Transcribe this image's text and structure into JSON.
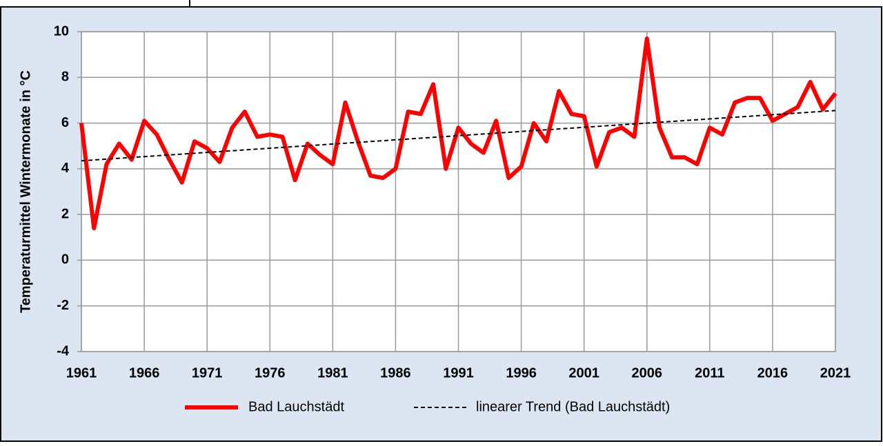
{
  "chart_data": {
    "type": "line",
    "y_label": "Temperaturmittel Wintermonate in °C",
    "x": [
      1961,
      1962,
      1963,
      1964,
      1965,
      1966,
      1967,
      1968,
      1969,
      1970,
      1971,
      1972,
      1973,
      1974,
      1975,
      1976,
      1977,
      1978,
      1979,
      1980,
      1981,
      1982,
      1983,
      1984,
      1985,
      1986,
      1987,
      1988,
      1989,
      1990,
      1991,
      1992,
      1993,
      1994,
      1995,
      1996,
      1997,
      1998,
      1999,
      2000,
      2001,
      2002,
      2003,
      2004,
      2005,
      2006,
      2007,
      2008,
      2009,
      2010,
      2011,
      2012,
      2013,
      2014,
      2015,
      2016,
      2017,
      2018,
      2019,
      2020,
      2021
    ],
    "series": [
      {
        "name": "Bad Lauchstädt",
        "color": "#ff0000",
        "values": [
          6.0,
          1.4,
          4.2,
          5.1,
          4.4,
          6.1,
          5.5,
          4.4,
          3.4,
          5.2,
          4.9,
          4.3,
          5.8,
          6.5,
          5.4,
          5.5,
          5.4,
          3.5,
          5.1,
          4.6,
          4.2,
          6.9,
          5.2,
          3.7,
          3.6,
          4.0,
          6.5,
          6.4,
          7.7,
          4.0,
          5.8,
          5.1,
          4.7,
          6.1,
          3.6,
          4.1,
          6.0,
          5.2,
          7.4,
          6.4,
          6.3,
          4.1,
          5.6,
          5.8,
          5.4,
          9.7,
          5.8,
          4.5,
          4.5,
          4.2,
          5.8,
          5.5,
          6.9,
          7.1,
          7.1,
          6.1,
          6.4,
          6.7,
          7.8,
          6.6,
          7.3
        ]
      },
      {
        "name": "linearer Trend (Bad Lauchstädt)",
        "color": "#000000",
        "dashed": true,
        "x": [
          1961,
          2021
        ],
        "values": [
          4.35,
          6.55
        ]
      }
    ],
    "xlim": [
      1961,
      2021
    ],
    "xticks": [
      1961,
      1966,
      1971,
      1976,
      1981,
      1986,
      1991,
      1996,
      2001,
      2006,
      2011,
      2016,
      2021
    ],
    "ylim": [
      -4,
      10
    ],
    "yticks": [
      -4,
      -2,
      0,
      2,
      4,
      6,
      8,
      10
    ],
    "grid": true,
    "legend": "bottom"
  }
}
